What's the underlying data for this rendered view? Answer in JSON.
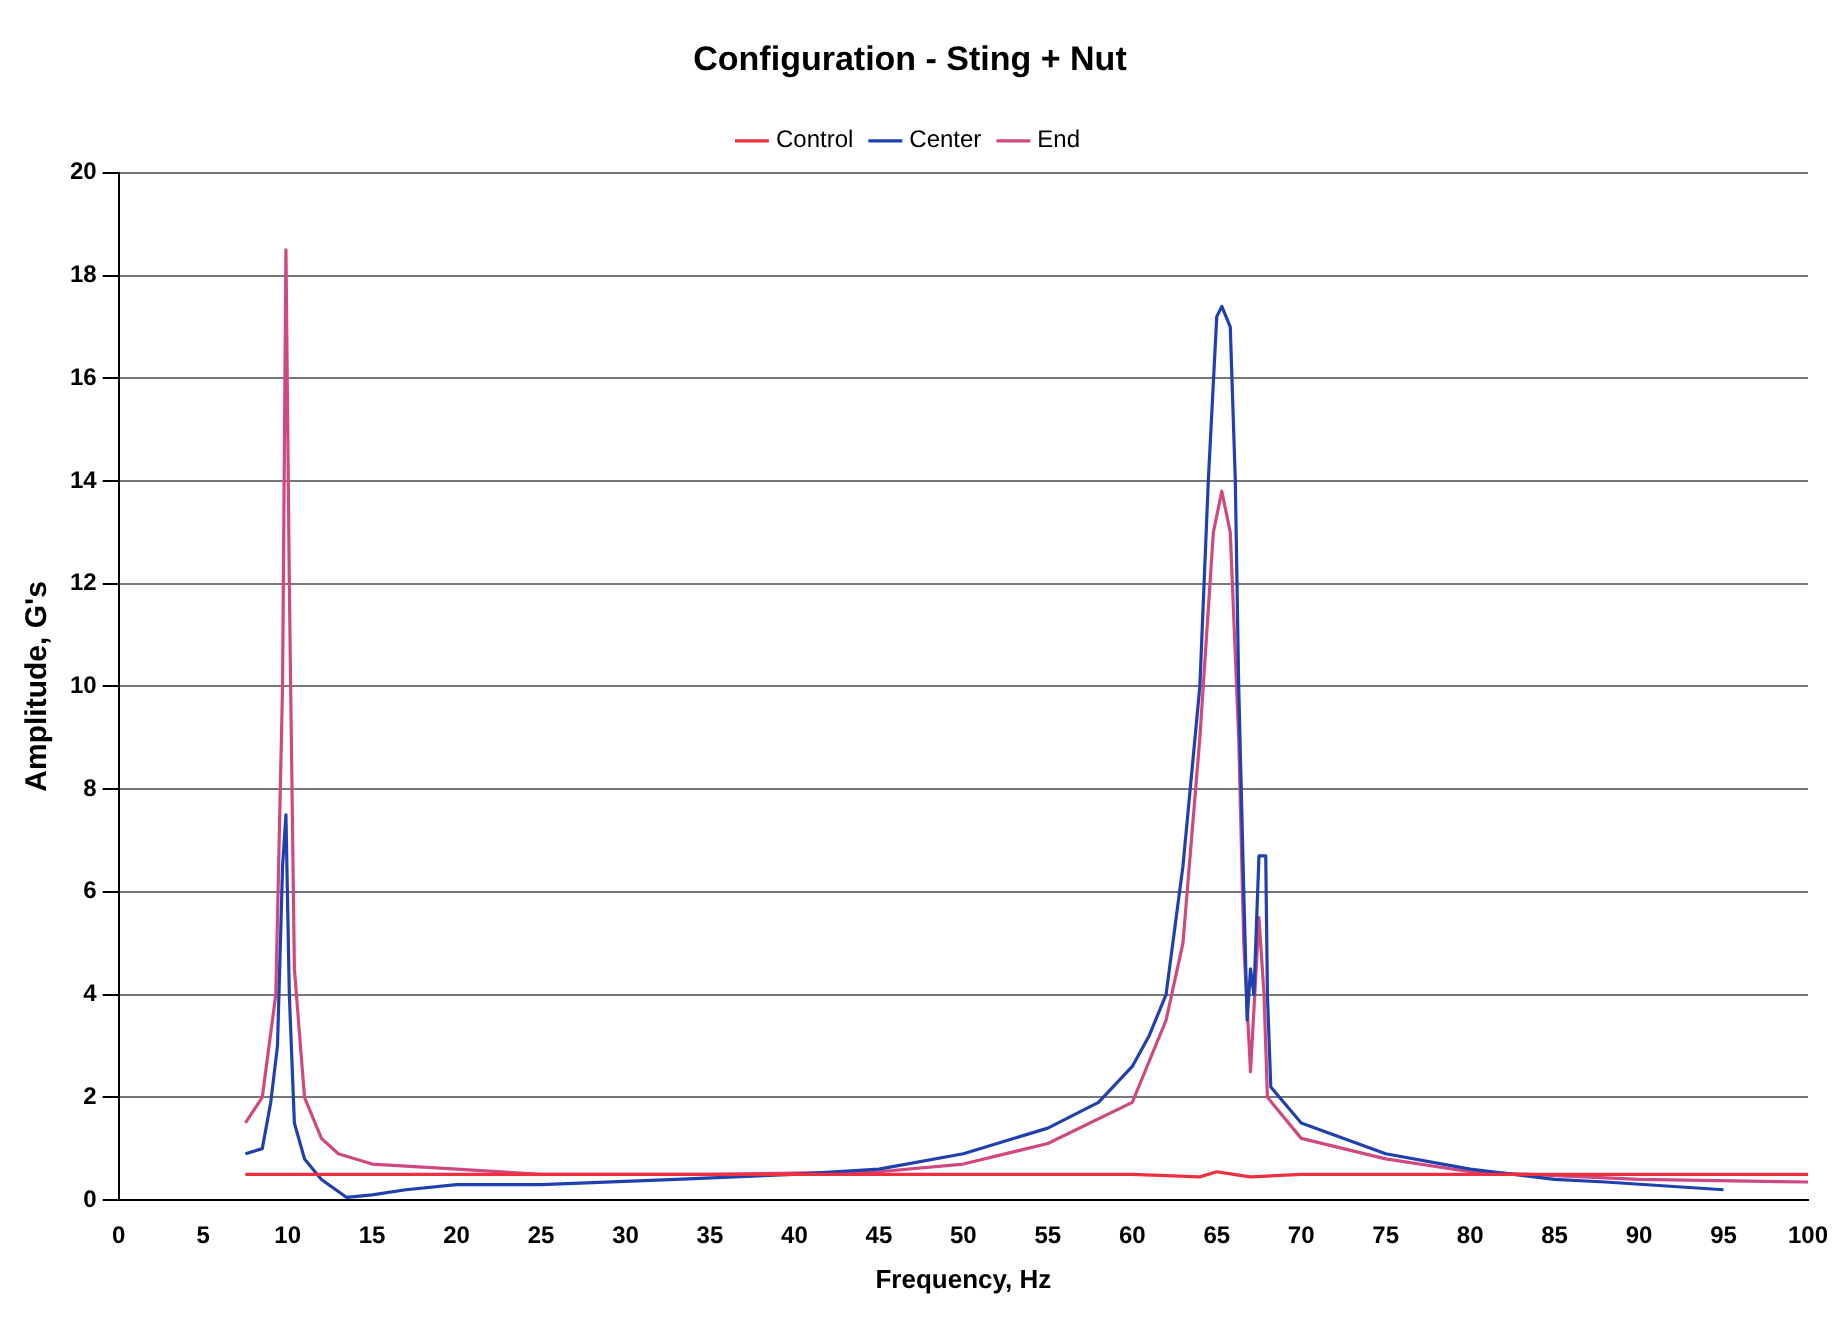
{
  "chart_data": {
    "type": "line",
    "title": "Configuration - Sting + Nut",
    "xlabel": "Frequency, Hz",
    "ylabel": "Amplitude, G's",
    "xlim": [
      0,
      100
    ],
    "xticks": [
      0,
      5,
      10,
      15,
      20,
      25,
      30,
      35,
      40,
      45,
      50,
      55,
      60,
      65,
      70,
      75,
      80,
      85,
      90,
      95,
      100
    ],
    "ylim": [
      0,
      20
    ],
    "yticks": [
      0,
      2,
      4,
      6,
      8,
      10,
      12,
      14,
      16,
      18,
      20
    ],
    "grid": "y",
    "legend": "top",
    "marker": "none",
    "line_style": "solid",
    "series": [
      {
        "name": "Control",
        "color": "#f03040",
        "x": [
          7.5,
          20,
          40,
          60,
          64,
          65,
          66,
          67,
          70,
          85,
          100
        ],
        "values": [
          0.5,
          0.5,
          0.5,
          0.5,
          0.45,
          0.55,
          0.5,
          0.45,
          0.5,
          0.5,
          0.5
        ]
      },
      {
        "name": "Center",
        "color": "#2040b0",
        "x": [
          7.5,
          8.5,
          9,
          9.4,
          9.7,
          9.9,
          10.1,
          10.4,
          11,
          12,
          13.5,
          15,
          17,
          20,
          25,
          33,
          40,
          45,
          50,
          55,
          58,
          60,
          61,
          62,
          63,
          64,
          64.5,
          65,
          65.3,
          65.8,
          66.1,
          66.3,
          66.6,
          66.8,
          67,
          67.2,
          67.5,
          67.9,
          68,
          68.2,
          70,
          75,
          80,
          85,
          88,
          95
        ],
        "values": [
          0.9,
          1,
          1.9,
          3,
          6.5,
          7.5,
          4,
          1.5,
          0.8,
          0.4,
          0.05,
          0.1,
          0.2,
          0.3,
          0.3,
          0.4,
          0.5,
          0.6,
          0.9,
          1.4,
          1.9,
          2.6,
          3.2,
          4,
          6.5,
          10,
          14,
          17.2,
          17.4,
          17,
          14,
          10,
          6,
          3.5,
          4.5,
          4,
          6.7,
          6.7,
          4,
          2.2,
          1.5,
          0.9,
          0.6,
          0.4,
          0.35,
          0.2
        ]
      },
      {
        "name": "End",
        "color": "#d04880",
        "x": [
          7.5,
          8.5,
          9.3,
          9.7,
          9.9,
          10.1,
          10.4,
          11,
          12,
          13,
          15,
          20,
          25,
          35,
          45,
          50,
          55,
          60,
          62,
          63,
          64,
          64.8,
          65.3,
          65.8,
          66.3,
          66.6,
          67,
          67.5,
          67.8,
          68,
          70,
          75,
          80,
          90,
          100
        ],
        "values": [
          1.5,
          2,
          4,
          10,
          18.5,
          12,
          4.5,
          2,
          1.2,
          0.9,
          0.7,
          0.6,
          0.5,
          0.5,
          0.55,
          0.7,
          1.1,
          1.9,
          3.5,
          5,
          9,
          13,
          13.8,
          13,
          9,
          5,
          2.5,
          5.5,
          4,
          2,
          1.2,
          0.8,
          0.55,
          0.4,
          0.35
        ]
      }
    ]
  }
}
